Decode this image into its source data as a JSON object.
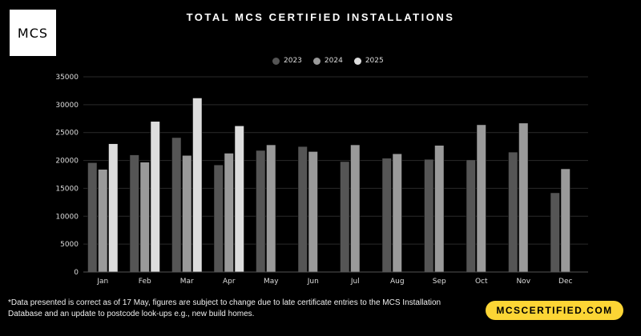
{
  "logo_text": "MCS",
  "title": "TOTAL MCS CERTIFIED INSTALLATIONS",
  "footnote": "*Data presented is correct as of 17 May, figures are subject to change due to late certificate entries to the MCS Installation Database and an update to postcode look-ups e.g., new build homes.",
  "cta_label": "MCSCERTIFIED.COM",
  "colors": {
    "2023": "#555555",
    "2024": "#9a9a9a",
    "2025": "#dddddd",
    "cta": "#fcd535"
  },
  "chart_data": {
    "type": "bar",
    "title": "TOTAL MCS CERTIFIED INSTALLATIONS",
    "xlabel": "",
    "ylabel": "",
    "ylim": [
      0,
      35000
    ],
    "yticks": [
      0,
      5000,
      10000,
      15000,
      20000,
      25000,
      30000,
      35000
    ],
    "grid": true,
    "legend_position": "top-center",
    "categories": [
      "Jan",
      "Feb",
      "Mar",
      "Apr",
      "May",
      "Jun",
      "Jul",
      "Aug",
      "Sep",
      "Oct",
      "Nov",
      "Dec"
    ],
    "series": [
      {
        "name": "2023",
        "values": [
          19600,
          21000,
          24100,
          19200,
          21800,
          22500,
          19800,
          20400,
          20200,
          20100,
          21500,
          14200
        ]
      },
      {
        "name": "2024",
        "values": [
          18400,
          19700,
          20900,
          21300,
          22800,
          21600,
          22800,
          21200,
          22700,
          26400,
          26700,
          18500
        ]
      },
      {
        "name": "2025",
        "values": [
          23000,
          27000,
          31200,
          26200,
          null,
          null,
          null,
          null,
          null,
          null,
          null,
          null
        ]
      }
    ]
  }
}
